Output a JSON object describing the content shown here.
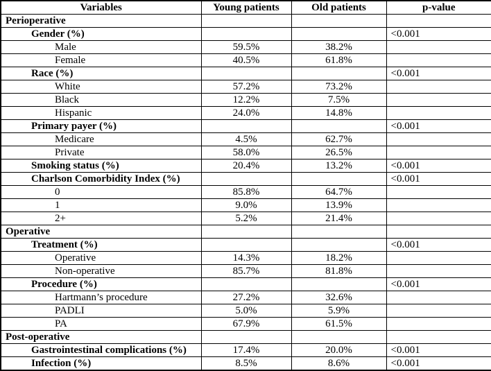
{
  "colors": {
    "border": "#000000",
    "background": "#ffffff",
    "text": "#000000"
  },
  "table": {
    "columns": [
      "Variables",
      "Young patients",
      "Old patients",
      "p-value"
    ],
    "rows": [
      {
        "label": "Perioperative",
        "indent": 0,
        "bold": true,
        "young": "",
        "old": "",
        "p": ""
      },
      {
        "label": "Gender (%)",
        "indent": 1,
        "bold": true,
        "young": "",
        "old": "",
        "p": "<0.001"
      },
      {
        "label": "Male",
        "indent": 2,
        "bold": false,
        "young": "59.5%",
        "old": "38.2%",
        "p": ""
      },
      {
        "label": "Female",
        "indent": 2,
        "bold": false,
        "young": "40.5%",
        "old": "61.8%",
        "p": ""
      },
      {
        "label": "Race (%)",
        "indent": 1,
        "bold": true,
        "young": "",
        "old": "",
        "p": "<0.001"
      },
      {
        "label": "White",
        "indent": 2,
        "bold": false,
        "young": "57.2%",
        "old": "73.2%",
        "p": ""
      },
      {
        "label": "Black",
        "indent": 2,
        "bold": false,
        "young": "12.2%",
        "old": "7.5%",
        "p": ""
      },
      {
        "label": "Hispanic",
        "indent": 2,
        "bold": false,
        "young": "24.0%",
        "old": "14.8%",
        "p": ""
      },
      {
        "label": "Primary payer (%)",
        "indent": 1,
        "bold": true,
        "young": "",
        "old": "",
        "p": "<0.001"
      },
      {
        "label": "Medicare",
        "indent": 2,
        "bold": false,
        "young": "4.5%",
        "old": "62.7%",
        "p": ""
      },
      {
        "label": "Private",
        "indent": 2,
        "bold": false,
        "young": "58.0%",
        "old": "26.5%",
        "p": ""
      },
      {
        "label": "Smoking status (%)",
        "indent": 1,
        "bold": true,
        "young": "20.4%",
        "old": "13.2%",
        "p": "<0.001"
      },
      {
        "label": "Charlson Comorbidity Index (%)",
        "indent": 1,
        "bold": true,
        "young": "",
        "old": "",
        "p": "<0.001"
      },
      {
        "label": "0",
        "indent": 2,
        "bold": false,
        "young": "85.8%",
        "old": "64.7%",
        "p": ""
      },
      {
        "label": "1",
        "indent": 2,
        "bold": false,
        "young": "9.0%",
        "old": "13.9%",
        "p": ""
      },
      {
        "label": "2+",
        "indent": 2,
        "bold": false,
        "young": "5.2%",
        "old": "21.4%",
        "p": ""
      },
      {
        "label": "Operative",
        "indent": 0,
        "bold": true,
        "young": "",
        "old": "",
        "p": ""
      },
      {
        "label": "Treatment (%)",
        "indent": 1,
        "bold": true,
        "young": "",
        "old": "",
        "p": "<0.001"
      },
      {
        "label": "Operative",
        "indent": 2,
        "bold": false,
        "young": "14.3%",
        "old": "18.2%",
        "p": ""
      },
      {
        "label": "Non-operative",
        "indent": 2,
        "bold": false,
        "young": "85.7%",
        "old": "81.8%",
        "p": ""
      },
      {
        "label": "Procedure (%)",
        "indent": 1,
        "bold": true,
        "young": "",
        "old": "",
        "p": "<0.001"
      },
      {
        "label": "Hartmann’s procedure",
        "indent": 2,
        "bold": false,
        "young": "27.2%",
        "old": "32.6%",
        "p": ""
      },
      {
        "label": "PADLI",
        "indent": 2,
        "bold": false,
        "young": "5.0%",
        "old": "5.9%",
        "p": ""
      },
      {
        "label": "PA",
        "indent": 2,
        "bold": false,
        "young": "67.9%",
        "old": "61.5%",
        "p": ""
      },
      {
        "label": "Post-operative",
        "indent": 0,
        "bold": true,
        "young": "",
        "old": "",
        "p": ""
      },
      {
        "label": "Gastrointestinal complications (%)",
        "indent": 1,
        "bold": true,
        "young": "17.4%",
        "old": "20.0%",
        "p": "<0.001"
      },
      {
        "label": "Infection (%)",
        "indent": 1,
        "bold": true,
        "young": "8.5%",
        "old": "8.6%",
        "p": "<0.001"
      }
    ]
  }
}
